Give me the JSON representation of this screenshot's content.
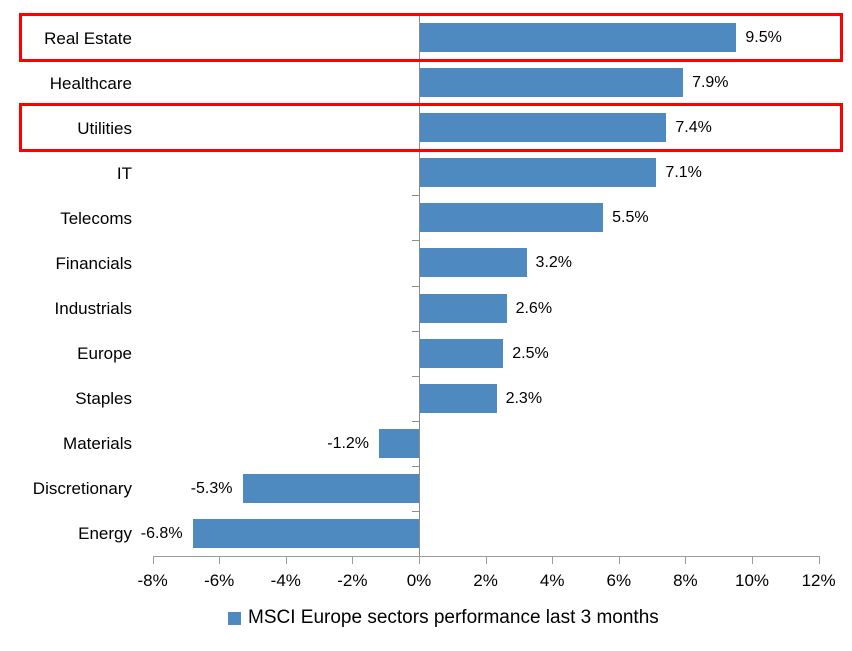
{
  "chart_data": {
    "type": "bar",
    "orientation": "horizontal",
    "title": "",
    "legend": "MSCI Europe sectors performance last 3 months",
    "legend_position": "bottom-center",
    "categories": [
      "Real Estate",
      "Healthcare",
      "Utilities",
      "IT",
      "Telecoms",
      "Financials",
      "Industrials",
      "Europe",
      "Staples",
      "Materials",
      "Discretionary",
      "Energy"
    ],
    "values": [
      9.5,
      7.9,
      7.4,
      7.1,
      5.5,
      3.2,
      2.6,
      2.5,
      2.3,
      -1.2,
      -5.3,
      -6.8
    ],
    "value_labels": [
      "9.5%",
      "7.9%",
      "7.4%",
      "7.1%",
      "5.5%",
      "3.2%",
      "2.6%",
      "2.5%",
      "2.3%",
      "-1.2%",
      "-5.3%",
      "-6.8%"
    ],
    "x_ticks": [
      "-8%",
      "-6%",
      "-4%",
      "-2%",
      "0%",
      "2%",
      "4%",
      "6%",
      "8%",
      "10%",
      "12%"
    ],
    "x_tick_values": [
      -8,
      -6,
      -4,
      -2,
      0,
      2,
      4,
      6,
      8,
      10,
      12
    ],
    "xlim": [
      -8,
      12
    ],
    "grid": false,
    "highlighted_rows": [
      0,
      2
    ],
    "highlighted_categories": [
      "Real Estate",
      "Utilities"
    ],
    "bar_color": "#4E8AC0",
    "highlight_color": "#FF0000",
    "axis_color": "#8C8C8C",
    "text_color": "#000000"
  }
}
